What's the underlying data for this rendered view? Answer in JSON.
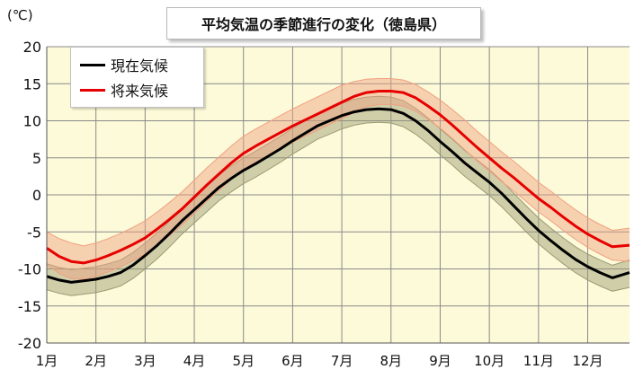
{
  "chart_data": {
    "type": "line",
    "title": "平均気温の季節進行の変化（徳島県）",
    "unit_label": "(℃)",
    "xlabel": "",
    "ylabel": "",
    "ylim": [
      -20,
      20
    ],
    "y_ticks": [
      20,
      15,
      10,
      5,
      0,
      -5,
      -10,
      -15,
      -20
    ],
    "categories": [
      "1月",
      "2月",
      "3月",
      "4月",
      "5月",
      "6月",
      "7月",
      "8月",
      "9月",
      "10月",
      "11月",
      "12月"
    ],
    "grid": true,
    "legend_position": "top-left",
    "series": [
      {
        "name": "現在気候",
        "color": "#000000",
        "band_color": "#9a9a72",
        "x": [
          1,
          1.25,
          1.5,
          1.75,
          2,
          2.25,
          2.5,
          2.75,
          3,
          3.25,
          3.5,
          3.75,
          4,
          4.25,
          4.5,
          4.75,
          5,
          5.25,
          5.5,
          5.75,
          6,
          6.25,
          6.5,
          6.75,
          7,
          7.25,
          7.5,
          7.75,
          8,
          8.25,
          8.5,
          8.75,
          9,
          9.25,
          9.5,
          9.75,
          10,
          10.25,
          10.5,
          10.75,
          11,
          11.25,
          11.5,
          11.75,
          12,
          12.25,
          12.5,
          12.85
        ],
        "values": [
          -11.0,
          -11.5,
          -11.8,
          -11.6,
          -11.4,
          -11.0,
          -10.5,
          -9.5,
          -8.2,
          -6.8,
          -5.2,
          -3.5,
          -2.0,
          -0.5,
          1.0,
          2.2,
          3.3,
          4.2,
          5.2,
          6.2,
          7.3,
          8.3,
          9.3,
          10.0,
          10.7,
          11.2,
          11.5,
          11.6,
          11.5,
          11.0,
          10.0,
          8.7,
          7.2,
          5.8,
          4.3,
          3.0,
          1.7,
          0.2,
          -1.5,
          -3.2,
          -4.8,
          -6.2,
          -7.5,
          -8.7,
          -9.7,
          -10.5,
          -11.2,
          -10.5
        ],
        "upper": [
          -9.3,
          -9.8,
          -10.1,
          -9.9,
          -9.7,
          -9.3,
          -8.8,
          -7.8,
          -6.5,
          -5.1,
          -3.5,
          -1.8,
          -0.3,
          1.2,
          2.7,
          3.9,
          5.0,
          5.9,
          6.9,
          7.9,
          9.0,
          10.0,
          11.0,
          11.7,
          12.4,
          12.9,
          13.2,
          13.3,
          13.2,
          12.7,
          11.7,
          10.4,
          8.9,
          7.5,
          6.0,
          4.7,
          3.4,
          1.9,
          0.2,
          -1.5,
          -3.1,
          -4.5,
          -5.8,
          -7.0,
          -8.0,
          -8.8,
          -9.5,
          -8.8
        ],
        "lower": [
          -12.8,
          -13.3,
          -13.6,
          -13.4,
          -13.2,
          -12.8,
          -12.3,
          -11.3,
          -10.0,
          -8.6,
          -7.0,
          -5.3,
          -3.8,
          -2.3,
          -0.8,
          0.4,
          1.5,
          2.4,
          3.4,
          4.4,
          5.5,
          6.5,
          7.5,
          8.2,
          8.9,
          9.4,
          9.7,
          9.8,
          9.7,
          9.2,
          8.2,
          6.9,
          5.4,
          4.0,
          2.5,
          1.2,
          -0.1,
          -1.6,
          -3.3,
          -5.0,
          -6.6,
          -8.0,
          -9.3,
          -10.5,
          -11.5,
          -12.3,
          -13.0,
          -12.5
        ]
      },
      {
        "name": "将来気候",
        "color": "#e60000",
        "band_color": "#f0a080",
        "x": [
          1,
          1.25,
          1.5,
          1.75,
          2,
          2.25,
          2.5,
          2.75,
          3,
          3.25,
          3.5,
          3.75,
          4,
          4.25,
          4.5,
          4.75,
          5,
          5.25,
          5.5,
          5.75,
          6,
          6.25,
          6.5,
          6.75,
          7,
          7.25,
          7.5,
          7.75,
          8,
          8.25,
          8.5,
          8.75,
          9,
          9.25,
          9.5,
          9.75,
          10,
          10.25,
          10.5,
          10.75,
          11,
          11.25,
          11.5,
          11.75,
          12,
          12.25,
          12.5,
          12.85
        ],
        "values": [
          -7.2,
          -8.3,
          -9.0,
          -9.2,
          -8.8,
          -8.2,
          -7.5,
          -6.7,
          -5.8,
          -4.6,
          -3.3,
          -1.9,
          -0.3,
          1.3,
          2.8,
          4.3,
          5.6,
          6.6,
          7.5,
          8.4,
          9.3,
          10.1,
          10.9,
          11.7,
          12.5,
          13.3,
          13.8,
          14.0,
          14.0,
          13.8,
          13.1,
          12.0,
          10.8,
          9.4,
          7.9,
          6.4,
          5.0,
          3.6,
          2.3,
          0.9,
          -0.5,
          -1.7,
          -3.0,
          -4.2,
          -5.3,
          -6.2,
          -7.0,
          -6.8
        ],
        "upper": [
          -5.0,
          -5.9,
          -6.5,
          -6.9,
          -6.5,
          -5.9,
          -5.2,
          -4.4,
          -3.5,
          -2.3,
          -1.0,
          0.4,
          2.0,
          3.6,
          5.1,
          6.6,
          7.9,
          8.9,
          9.8,
          10.7,
          11.6,
          12.4,
          13.2,
          14.0,
          14.8,
          15.3,
          15.6,
          15.7,
          15.7,
          15.5,
          14.9,
          13.9,
          12.8,
          11.5,
          10.1,
          8.6,
          7.2,
          5.8,
          4.5,
          3.1,
          1.7,
          0.5,
          -0.8,
          -2.0,
          -3.1,
          -4.0,
          -4.8,
          -4.5
        ],
        "lower": [
          -9.4,
          -10.6,
          -11.3,
          -11.4,
          -11.0,
          -10.4,
          -9.7,
          -8.9,
          -8.0,
          -6.8,
          -5.5,
          -4.1,
          -2.5,
          -0.9,
          0.6,
          2.1,
          3.4,
          4.4,
          5.3,
          6.2,
          7.1,
          7.9,
          8.7,
          9.5,
          10.3,
          11.1,
          11.9,
          12.2,
          12.2,
          12.0,
          11.3,
          10.2,
          9.0,
          7.6,
          6.1,
          4.6,
          3.2,
          1.8,
          0.5,
          -0.9,
          -2.3,
          -3.5,
          -4.8,
          -6.0,
          -7.1,
          -8.0,
          -8.8,
          -9.0
        ]
      }
    ]
  }
}
